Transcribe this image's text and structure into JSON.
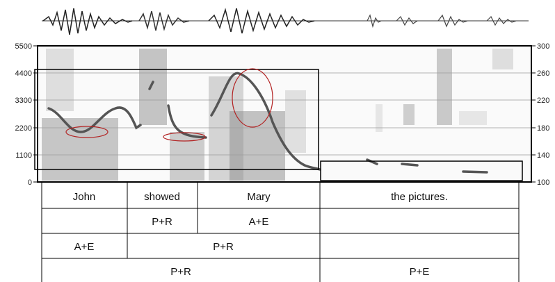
{
  "left_axis": {
    "ticks": [
      "5500",
      "4400",
      "3300",
      "2200",
      "1100",
      "0"
    ]
  },
  "right_axis": {
    "ticks": [
      "300",
      "260",
      "220",
      "180",
      "140",
      "100"
    ]
  },
  "words": [
    "John",
    "showed",
    "Mary",
    "the pictures."
  ],
  "tier2": [
    "P+R",
    "A+E"
  ],
  "tier3": [
    "A+E",
    "P+R"
  ],
  "tier4": [
    "P+R",
    "P+E"
  ],
  "colors": {
    "pitch": "#555555",
    "highlight": "#b22222",
    "frame": "#000000"
  }
}
